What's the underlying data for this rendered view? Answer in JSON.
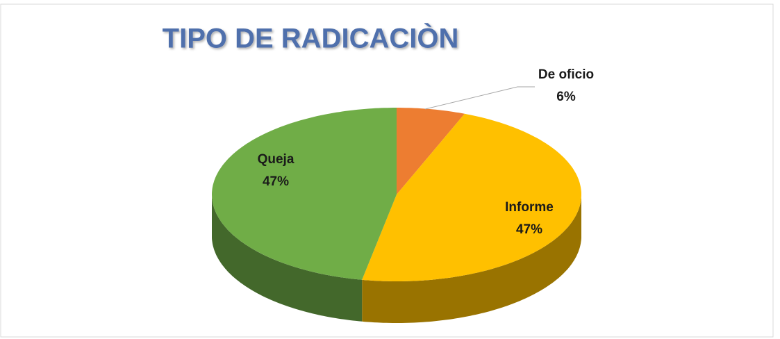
{
  "chart_data": {
    "type": "pie3d",
    "title": "TIPO DE RADICACIÒN",
    "categories": [
      "De oficio",
      "Informe",
      "Queja"
    ],
    "values": [
      6,
      47,
      47
    ],
    "value_labels": [
      "6%",
      "47%",
      "47%"
    ],
    "colors": [
      "#ed7d31",
      "#ffc000",
      "#70ad47"
    ]
  }
}
